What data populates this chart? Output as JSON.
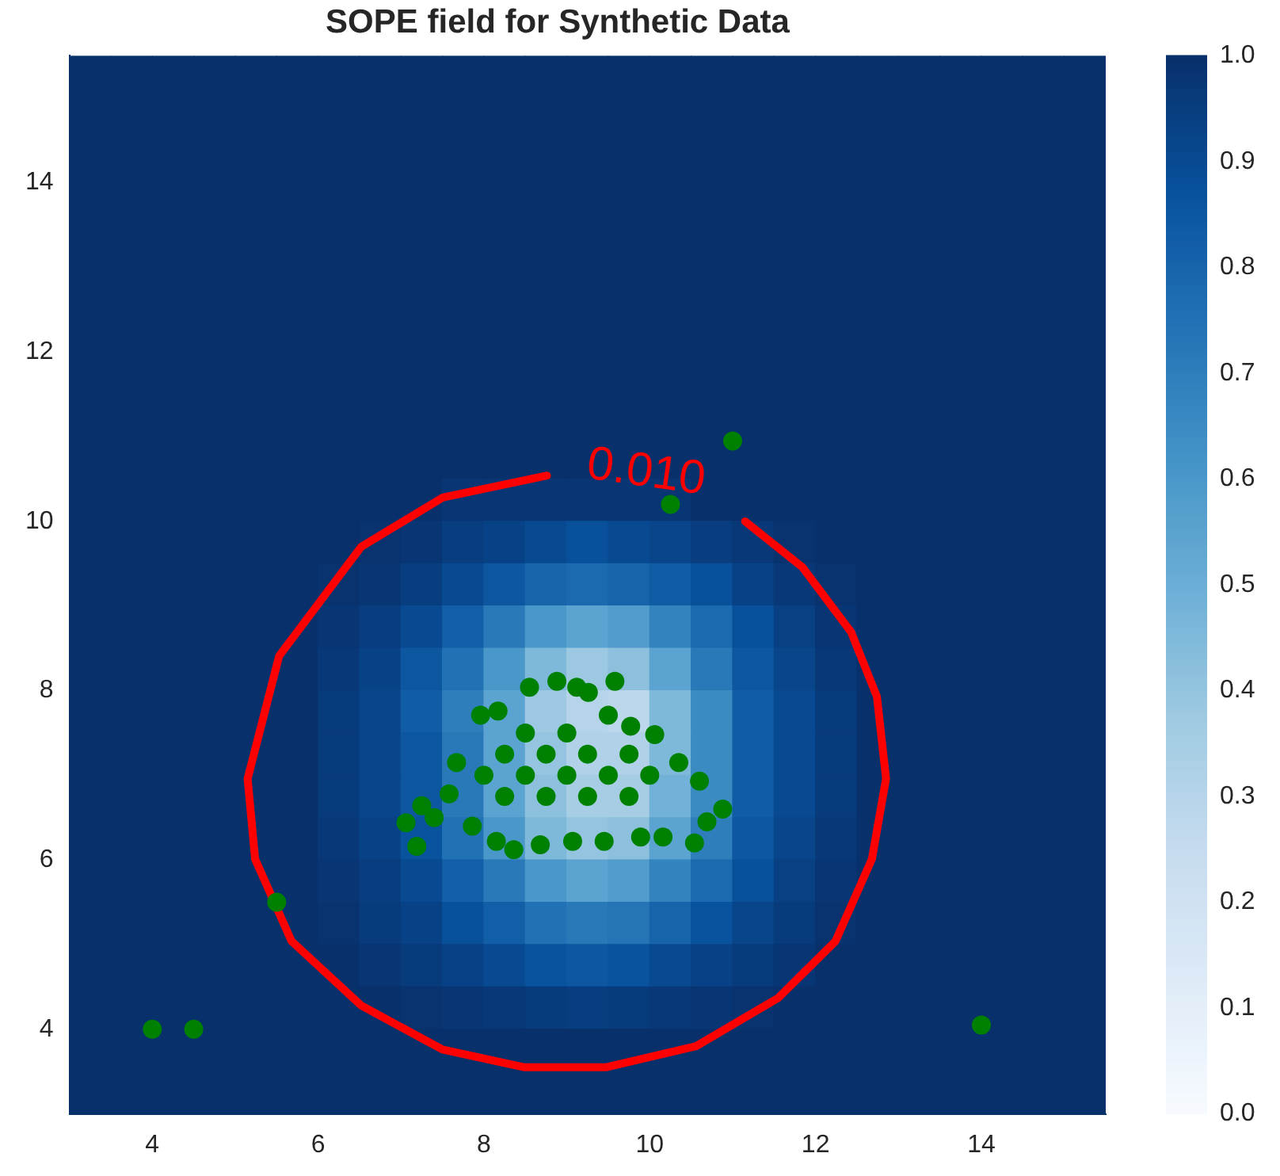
{
  "chart_data": {
    "type": "heatmap",
    "title": "SOPE field for Synthetic Data",
    "xlim": [
      3,
      15.5
    ],
    "xticks": [
      4,
      6,
      8,
      10,
      12,
      14
    ],
    "ylim": [
      3,
      15.5
    ],
    "yticks": [
      4,
      6,
      8,
      10,
      12,
      14
    ],
    "clim": [
      0,
      1
    ],
    "cticks": [
      {
        "value": 0,
        "label": "0.0"
      },
      0.1,
      0.2,
      0.3,
      0.4,
      0.5,
      0.6,
      0.7,
      0.8,
      0.9,
      {
        "value": 1,
        "label": "1.0"
      }
    ],
    "cells": [
      [
        1,
        1,
        1,
        1,
        1,
        1,
        1,
        1,
        1,
        1,
        1,
        1,
        1,
        1,
        1,
        1,
        1,
        1,
        1,
        1,
        1,
        1,
        1,
        1,
        1
      ],
      [
        1,
        1,
        1,
        1,
        1,
        1,
        1,
        1,
        1,
        1,
        1,
        1,
        1,
        1,
        1,
        1,
        1,
        1,
        1,
        1,
        1,
        1,
        1,
        1,
        1
      ],
      [
        1,
        1,
        1,
        1,
        1,
        1,
        1,
        1,
        1,
        1,
        1,
        1,
        1,
        1,
        1,
        1,
        1,
        1,
        1,
        1,
        1,
        1,
        1,
        1,
        1
      ],
      [
        1,
        1,
        1,
        1,
        1,
        1,
        1,
        1,
        1,
        1,
        1,
        1,
        1,
        1,
        1,
        1,
        1,
        1,
        1,
        1,
        1,
        1,
        1,
        1,
        1
      ],
      [
        1,
        1,
        1,
        1,
        1,
        1,
        1,
        1,
        1,
        1,
        1,
        1,
        1,
        1,
        1,
        1,
        1,
        1,
        1,
        1,
        1,
        1,
        1,
        1,
        1
      ],
      [
        1,
        1,
        1,
        1,
        1,
        1,
        1,
        1,
        1,
        1,
        1,
        1,
        1,
        1,
        1,
        1,
        1,
        1,
        1,
        1,
        1,
        1,
        1,
        1,
        1
      ],
      [
        1,
        1,
        1,
        1,
        1,
        1,
        1,
        1,
        1,
        1,
        1,
        1,
        1,
        1,
        1,
        1,
        1,
        1,
        1,
        1,
        1,
        1,
        1,
        1,
        1
      ],
      [
        1,
        1,
        1,
        1,
        1,
        1,
        1,
        1,
        1,
        1,
        1,
        1,
        1,
        1,
        1,
        1,
        1,
        1,
        1,
        1,
        1,
        1,
        1,
        1,
        1
      ],
      [
        1,
        1,
        1,
        1,
        1,
        1,
        1,
        1,
        1,
        1,
        1,
        1,
        1,
        1,
        1,
        1,
        1,
        1,
        1,
        1,
        1,
        1,
        1,
        1,
        1
      ],
      [
        1,
        1,
        1,
        1,
        1,
        1,
        1,
        1,
        1,
        1,
        1,
        1,
        1,
        1,
        1,
        1,
        1,
        1,
        1,
        1,
        1,
        1,
        1,
        1,
        1
      ],
      [
        1,
        1,
        1,
        1,
        1,
        1,
        1,
        1,
        1,
        0.98,
        0.98,
        0.98,
        0.98,
        0.98,
        0.98,
        1,
        1,
        1,
        1,
        1,
        1,
        1,
        1,
        1,
        1
      ],
      [
        1,
        1,
        1,
        1,
        1,
        1,
        1,
        0.99,
        0.98,
        0.95,
        0.93,
        0.9,
        0.88,
        0.9,
        0.92,
        0.95,
        0.97,
        0.99,
        1,
        1,
        1,
        1,
        1,
        1,
        1
      ],
      [
        1,
        1,
        1,
        1,
        1,
        1,
        0.99,
        0.98,
        0.95,
        0.9,
        0.85,
        0.8,
        0.78,
        0.8,
        0.83,
        0.88,
        0.93,
        0.97,
        0.99,
        1,
        1,
        1,
        1,
        1,
        1
      ],
      [
        1,
        1,
        1,
        1,
        1,
        1,
        0.98,
        0.95,
        0.9,
        0.82,
        0.72,
        0.6,
        0.55,
        0.58,
        0.68,
        0.78,
        0.88,
        0.94,
        0.98,
        1,
        1,
        1,
        1,
        1,
        1
      ],
      [
        1,
        1,
        1,
        1,
        1,
        1,
        0.97,
        0.93,
        0.85,
        0.75,
        0.6,
        0.45,
        0.38,
        0.42,
        0.55,
        0.72,
        0.85,
        0.92,
        0.97,
        1,
        1,
        1,
        1,
        1,
        1
      ],
      [
        1,
        1,
        1,
        1,
        1,
        1,
        0.96,
        0.92,
        0.83,
        0.7,
        0.55,
        0.38,
        0.3,
        0.28,
        0.45,
        0.65,
        0.83,
        0.9,
        0.96,
        1,
        1,
        1,
        1,
        1,
        1
      ],
      [
        1,
        1,
        1,
        1,
        1,
        1,
        0.96,
        0.92,
        0.85,
        0.72,
        0.55,
        0.4,
        0.32,
        0.32,
        0.45,
        0.65,
        0.83,
        0.9,
        0.96,
        1,
        1,
        1,
        1,
        1,
        1
      ],
      [
        1,
        1,
        1,
        1,
        1,
        1,
        0.96,
        0.92,
        0.85,
        0.72,
        0.55,
        0.42,
        0.35,
        0.35,
        0.48,
        0.65,
        0.83,
        0.9,
        0.96,
        1,
        1,
        1,
        1,
        1,
        1
      ],
      [
        1,
        1,
        1,
        1,
        1,
        1,
        0.97,
        0.93,
        0.87,
        0.75,
        0.6,
        0.45,
        0.4,
        0.42,
        0.55,
        0.7,
        0.85,
        0.92,
        0.97,
        1,
        1,
        1,
        1,
        1,
        1
      ],
      [
        1,
        1,
        1,
        1,
        1,
        1,
        0.98,
        0.95,
        0.9,
        0.82,
        0.72,
        0.6,
        0.55,
        0.58,
        0.68,
        0.78,
        0.88,
        0.94,
        0.98,
        1,
        1,
        1,
        1,
        1,
        1
      ],
      [
        1,
        1,
        1,
        1,
        1,
        1,
        0.99,
        0.96,
        0.93,
        0.88,
        0.82,
        0.75,
        0.72,
        0.74,
        0.8,
        0.87,
        0.92,
        0.96,
        0.99,
        1,
        1,
        1,
        1,
        1,
        1
      ],
      [
        1,
        1,
        1,
        1,
        1,
        1,
        1,
        0.98,
        0.96,
        0.93,
        0.9,
        0.87,
        0.85,
        0.87,
        0.9,
        0.93,
        0.96,
        0.98,
        1,
        1,
        1,
        1,
        1,
        1,
        1
      ],
      [
        1,
        1,
        1,
        1,
        1,
        1,
        1,
        1,
        0.99,
        0.98,
        0.97,
        0.96,
        0.95,
        0.96,
        0.97,
        0.98,
        0.99,
        1,
        1,
        1,
        1,
        1,
        1,
        1,
        1
      ],
      [
        1,
        1,
        1,
        1,
        1,
        1,
        1,
        1,
        1,
        1,
        1,
        1,
        1,
        1,
        1,
        1,
        1,
        1,
        1,
        1,
        1,
        1,
        1,
        1,
        1
      ],
      [
        1,
        1,
        1,
        1,
        1,
        1,
        1,
        1,
        1,
        1,
        1,
        1,
        1,
        1,
        1,
        1,
        1,
        1,
        1,
        1,
        1,
        1,
        1,
        1,
        1
      ]
    ],
    "series": [
      {
        "type": "line",
        "color": "#ff0000",
        "line_style": "solid",
        "marker": "none",
        "x": [
          8.76,
          7.5,
          6.52,
          5.53,
          5.15,
          5.24,
          5.68,
          6.52,
          7.5,
          8.49,
          9.47,
          10.56,
          11.55,
          12.24,
          12.68,
          12.85,
          12.74,
          12.43,
          11.84,
          11.15
        ],
        "values": [
          10.54,
          10.28,
          9.7,
          8.41,
          6.96,
          6.01,
          5.04,
          4.28,
          3.76,
          3.55,
          3.55,
          3.8,
          4.37,
          5.04,
          6.01,
          6.96,
          7.93,
          8.69,
          9.46,
          10.0
        ]
      },
      {
        "type": "scatter",
        "color": "#008000",
        "marker": "circle",
        "x": [
          4,
          4.5,
          14,
          5.5,
          11,
          10.25,
          7.06,
          7.19,
          7.25,
          7.67,
          7.96,
          8.17,
          8.55,
          8.88,
          9.12,
          9.26,
          9.58,
          9.5,
          9.77,
          10.06,
          10.35,
          10.6,
          10.88,
          10.69,
          10.54,
          10.16,
          9.89,
          9.45,
          9.07,
          8.68,
          8.36,
          8.15,
          7.86,
          7.4,
          7.58,
          8.5,
          9.0,
          8.25,
          8.75,
          9.25,
          9.75,
          8.0,
          8.5,
          9.0,
          9.5,
          10.0,
          8.25,
          8.75,
          9.25,
          9.75
        ],
        "values": [
          4,
          4,
          4.05,
          5.5,
          10.95,
          10.2,
          6.44,
          6.16,
          6.64,
          7.15,
          7.71,
          7.76,
          8.04,
          8.11,
          8.04,
          7.98,
          8.11,
          7.71,
          7.58,
          7.48,
          7.15,
          6.93,
          6.6,
          6.45,
          6.2,
          6.27,
          6.27,
          6.22,
          6.22,
          6.18,
          6.12,
          6.22,
          6.4,
          6.5,
          6.78,
          7.5,
          7.5,
          7.25,
          7.25,
          7.25,
          7.25,
          7.0,
          7.0,
          7.0,
          7.0,
          7.0,
          6.75,
          6.75,
          6.75,
          6.75
        ]
      }
    ],
    "annotations": [
      "0.010"
    ]
  }
}
